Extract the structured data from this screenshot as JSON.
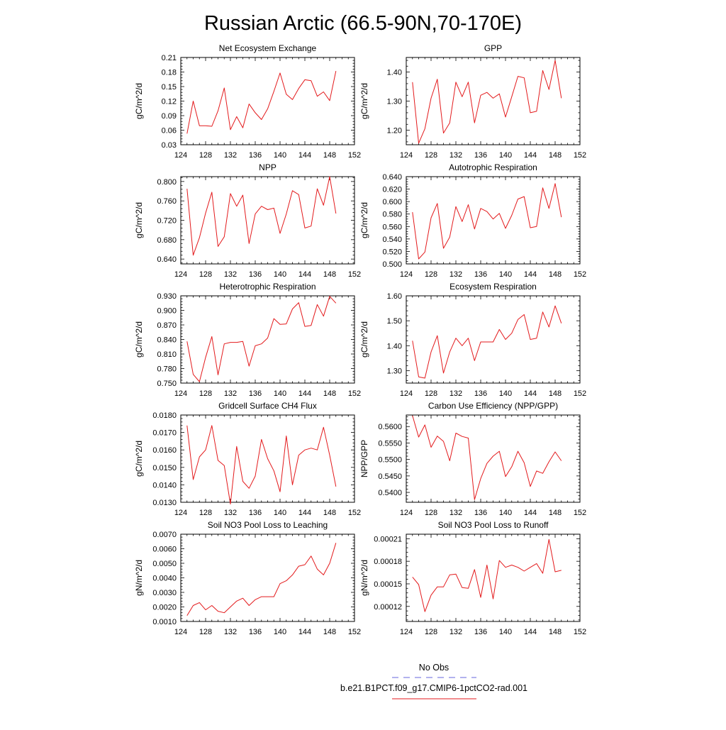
{
  "figure": {
    "title": "Russian Arctic (66.5-90N,70-170E)"
  },
  "legend": {
    "entries": [
      {
        "label": "No Obs",
        "color": "#6666dd",
        "dash": true
      },
      {
        "label": "b.e21.B1PCT.f09_g17.CMIP6-1pctCO2-rad.001",
        "color": "#e31a1c",
        "dash": false
      }
    ]
  },
  "chart_data": [
    {
      "type": "line",
      "title": "Net Ecosystem Exchange",
      "ylabel": "gC/m^2/d",
      "xlim": [
        124,
        152
      ],
      "ylim": [
        0.03,
        0.21
      ],
      "xticks": [
        124,
        128,
        132,
        136,
        140,
        144,
        148,
        152
      ],
      "yticks": [
        "0.03",
        "0.06",
        "0.09",
        "0.12",
        "0.15",
        "0.18",
        "0.21"
      ],
      "series": [
        {
          "color": "#e31a1c",
          "x": [
            125,
            126,
            127,
            128,
            129,
            130,
            131,
            132,
            133,
            134,
            135,
            136,
            137,
            138,
            139,
            140,
            141,
            142,
            143,
            144,
            145,
            146,
            147,
            148,
            149
          ],
          "y": [
            0.053,
            0.12,
            0.069,
            0.069,
            0.068,
            0.1,
            0.147,
            0.061,
            0.088,
            0.065,
            0.114,
            0.096,
            0.082,
            0.104,
            0.14,
            0.178,
            0.134,
            0.123,
            0.146,
            0.164,
            0.162,
            0.13,
            0.139,
            0.121,
            0.182
          ]
        }
      ]
    },
    {
      "type": "line",
      "title": "GPP",
      "ylabel": "gC/m^2/d",
      "xlim": [
        124,
        152
      ],
      "ylim": [
        1.15,
        1.45
      ],
      "xticks": [
        124,
        128,
        132,
        136,
        140,
        144,
        148,
        152
      ],
      "yticks": [
        "1.20",
        "1.30",
        "1.40"
      ],
      "series": [
        {
          "color": "#e31a1c",
          "x": [
            125,
            126,
            127,
            128,
            129,
            130,
            131,
            132,
            133,
            134,
            135,
            136,
            137,
            138,
            139,
            140,
            141,
            142,
            143,
            144,
            145,
            146,
            147,
            148,
            149
          ],
          "y": [
            1.365,
            1.155,
            1.205,
            1.31,
            1.375,
            1.19,
            1.225,
            1.365,
            1.315,
            1.365,
            1.225,
            1.32,
            1.33,
            1.31,
            1.325,
            1.245,
            1.315,
            1.385,
            1.38,
            1.26,
            1.265,
            1.405,
            1.34,
            1.44,
            1.31
          ]
        }
      ]
    },
    {
      "type": "line",
      "title": "NPP",
      "ylabel": "gC/m^2/d",
      "xlim": [
        124,
        152
      ],
      "ylim": [
        0.63,
        0.81
      ],
      "xticks": [
        124,
        128,
        132,
        136,
        140,
        144,
        148,
        152
      ],
      "yticks": [
        "0.640",
        "0.680",
        "0.720",
        "0.760",
        "0.800"
      ],
      "series": [
        {
          "color": "#e31a1c",
          "x": [
            125,
            126,
            127,
            128,
            129,
            130,
            131,
            132,
            133,
            134,
            135,
            136,
            137,
            138,
            139,
            140,
            141,
            142,
            143,
            144,
            145,
            146,
            147,
            148,
            149
          ],
          "y": [
            0.785,
            0.648,
            0.684,
            0.735,
            0.778,
            0.666,
            0.686,
            0.775,
            0.749,
            0.772,
            0.672,
            0.733,
            0.749,
            0.742,
            0.745,
            0.693,
            0.733,
            0.781,
            0.773,
            0.704,
            0.708,
            0.785,
            0.751,
            0.81,
            0.734
          ]
        }
      ]
    },
    {
      "type": "line",
      "title": "Autotrophic Respiration",
      "ylabel": "gC/m^2/d",
      "xlim": [
        124,
        152
      ],
      "ylim": [
        0.5,
        0.64
      ],
      "xticks": [
        124,
        128,
        132,
        136,
        140,
        144,
        148,
        152
      ],
      "yticks": [
        "0.500",
        "0.520",
        "0.540",
        "0.560",
        "0.580",
        "0.600",
        "0.620",
        "0.640"
      ],
      "series": [
        {
          "color": "#e31a1c",
          "x": [
            125,
            126,
            127,
            128,
            129,
            130,
            131,
            132,
            133,
            134,
            135,
            136,
            137,
            138,
            139,
            140,
            141,
            142,
            143,
            144,
            145,
            146,
            147,
            148,
            149
          ],
          "y": [
            0.583,
            0.508,
            0.519,
            0.574,
            0.597,
            0.525,
            0.543,
            0.592,
            0.568,
            0.595,
            0.556,
            0.589,
            0.584,
            0.572,
            0.581,
            0.557,
            0.578,
            0.604,
            0.608,
            0.558,
            0.56,
            0.622,
            0.589,
            0.629,
            0.575
          ]
        }
      ]
    },
    {
      "type": "line",
      "title": "Heterotrophic Respiration",
      "ylabel": "gC/m^2/d",
      "xlim": [
        124,
        152
      ],
      "ylim": [
        0.75,
        0.93
      ],
      "xticks": [
        124,
        128,
        132,
        136,
        140,
        144,
        148,
        152
      ],
      "yticks": [
        "0.750",
        "0.780",
        "0.810",
        "0.840",
        "0.870",
        "0.900",
        "0.930"
      ],
      "series": [
        {
          "color": "#e31a1c",
          "x": [
            125,
            126,
            127,
            128,
            129,
            130,
            131,
            132,
            133,
            134,
            135,
            136,
            137,
            138,
            139,
            140,
            141,
            142,
            143,
            144,
            145,
            146,
            147,
            148,
            149
          ],
          "y": [
            0.836,
            0.768,
            0.753,
            0.803,
            0.846,
            0.767,
            0.831,
            0.834,
            0.834,
            0.836,
            0.785,
            0.827,
            0.831,
            0.843,
            0.883,
            0.871,
            0.872,
            0.903,
            0.916,
            0.867,
            0.869,
            0.912,
            0.888,
            0.929,
            0.915
          ]
        }
      ]
    },
    {
      "type": "line",
      "title": "Ecosystem Respiration",
      "ylabel": "gC/m^2/d",
      "xlim": [
        124,
        152
      ],
      "ylim": [
        1.25,
        1.6
      ],
      "xticks": [
        124,
        128,
        132,
        136,
        140,
        144,
        148,
        152
      ],
      "yticks": [
        "1.30",
        "1.40",
        "1.50",
        "1.60"
      ],
      "series": [
        {
          "color": "#e31a1c",
          "x": [
            125,
            126,
            127,
            128,
            129,
            130,
            131,
            132,
            133,
            134,
            135,
            136,
            137,
            138,
            139,
            140,
            141,
            142,
            143,
            144,
            145,
            146,
            147,
            148,
            149
          ],
          "y": [
            1.42,
            1.275,
            1.27,
            1.375,
            1.44,
            1.29,
            1.375,
            1.43,
            1.4,
            1.43,
            1.34,
            1.415,
            1.415,
            1.415,
            1.465,
            1.425,
            1.45,
            1.505,
            1.525,
            1.425,
            1.43,
            1.535,
            1.475,
            1.56,
            1.49
          ]
        }
      ]
    },
    {
      "type": "line",
      "title": "Gridcell Surface CH4 Flux",
      "ylabel": "gC/m^2/d",
      "xlim": [
        124,
        152
      ],
      "ylim": [
        0.013,
        0.018
      ],
      "xticks": [
        124,
        128,
        132,
        136,
        140,
        144,
        148,
        152
      ],
      "yticks": [
        "0.0130",
        "0.0140",
        "0.0150",
        "0.0160",
        "0.0170",
        "0.0180"
      ],
      "series": [
        {
          "color": "#e31a1c",
          "x": [
            125,
            126,
            127,
            128,
            129,
            130,
            131,
            132,
            133,
            134,
            135,
            136,
            137,
            138,
            139,
            140,
            141,
            142,
            143,
            144,
            145,
            146,
            147,
            148,
            149
          ],
          "y": [
            0.0174,
            0.0143,
            0.0156,
            0.016,
            0.0174,
            0.0154,
            0.0151,
            0.0129,
            0.0162,
            0.0142,
            0.0138,
            0.0145,
            0.0166,
            0.0155,
            0.0148,
            0.0136,
            0.0168,
            0.014,
            0.0157,
            0.016,
            0.0161,
            0.016,
            0.0173,
            0.0157,
            0.0139
          ]
        }
      ]
    },
    {
      "type": "line",
      "title": "Carbon Use Efficiency (NPP/GPP)",
      "ylabel": "NPP/GPP",
      "xlim": [
        124,
        152
      ],
      "ylim": [
        0.537,
        0.5635
      ],
      "xticks": [
        124,
        128,
        132,
        136,
        140,
        144,
        148,
        152
      ],
      "yticks": [
        "0.5400",
        "0.5450",
        "0.5500",
        "0.5550",
        "0.5600"
      ],
      "series": [
        {
          "color": "#e31a1c",
          "x": [
            125,
            126,
            127,
            128,
            129,
            130,
            131,
            132,
            133,
            134,
            135,
            136,
            137,
            138,
            139,
            140,
            141,
            142,
            143,
            144,
            145,
            146,
            147,
            148,
            149
          ],
          "y": [
            0.5633,
            0.5568,
            0.5605,
            0.5537,
            0.5571,
            0.5555,
            0.5496,
            0.558,
            0.557,
            0.5565,
            0.5378,
            0.5442,
            0.5488,
            0.551,
            0.5525,
            0.5448,
            0.5478,
            0.5525,
            0.549,
            0.5418,
            0.5465,
            0.5458,
            0.5493,
            0.5523,
            0.5496
          ]
        }
      ]
    },
    {
      "type": "line",
      "title": "Soil NO3 Pool Loss to Leaching",
      "ylabel": "gN/m^2/d",
      "xlim": [
        124,
        152
      ],
      "ylim": [
        0.001,
        0.007
      ],
      "xticks": [
        124,
        128,
        132,
        136,
        140,
        144,
        148,
        152
      ],
      "yticks": [
        "0.0010",
        "0.0020",
        "0.0030",
        "0.0040",
        "0.0050",
        "0.0060",
        "0.0070"
      ],
      "series": [
        {
          "color": "#e31a1c",
          "x": [
            125,
            126,
            127,
            128,
            129,
            130,
            131,
            132,
            133,
            134,
            135,
            136,
            137,
            138,
            139,
            140,
            141,
            142,
            143,
            144,
            145,
            146,
            147,
            148,
            149
          ],
          "y": [
            0.0014,
            0.0021,
            0.0023,
            0.0018,
            0.0021,
            0.0017,
            0.0016,
            0.002,
            0.0024,
            0.0026,
            0.0021,
            0.0025,
            0.0027,
            0.0027,
            0.0027,
            0.0036,
            0.0038,
            0.0042,
            0.0048,
            0.0049,
            0.0055,
            0.0046,
            0.0042,
            0.005,
            0.0064
          ]
        }
      ]
    },
    {
      "type": "line",
      "title": "Soil NO3 Pool Loss to Runoff",
      "ylabel": "gN/m^2/d",
      "xlim": [
        124,
        152
      ],
      "ylim": [
        0.0001,
        0.000216
      ],
      "xticks": [
        124,
        128,
        132,
        136,
        140,
        144,
        148,
        152
      ],
      "yticks": [
        "0.00012",
        "0.00015",
        "0.00018",
        "0.00021"
      ],
      "series": [
        {
          "color": "#e31a1c",
          "x": [
            125,
            126,
            127,
            128,
            129,
            130,
            131,
            132,
            133,
            134,
            135,
            136,
            137,
            138,
            139,
            140,
            141,
            142,
            143,
            144,
            145,
            146,
            147,
            148,
            149
          ],
          "y": [
            0.000159,
            0.000149,
            0.000113,
            0.000135,
            0.000146,
            0.000146,
            0.000162,
            0.000163,
            0.000145,
            0.000144,
            0.000169,
            0.000132,
            0.000175,
            0.00013,
            0.000181,
            0.000172,
            0.000175,
            0.000172,
            0.000167,
            0.000172,
            0.000177,
            0.000164,
            0.000209,
            0.000166,
            0.000168
          ]
        }
      ]
    }
  ]
}
